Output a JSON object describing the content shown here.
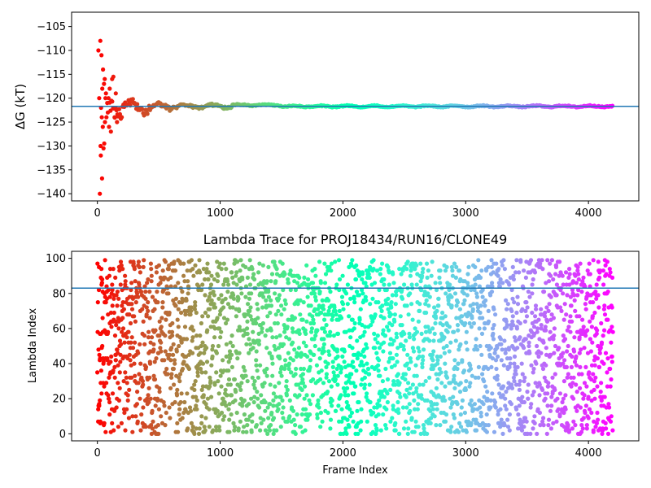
{
  "chart_data": [
    {
      "type": "scatter",
      "title": "",
      "xlabel": "",
      "ylabel": "ΔG (kT)",
      "xlim": [
        -210,
        4410
      ],
      "ylim": [
        -141.5,
        -102
      ],
      "xticks": [
        0,
        1000,
        2000,
        3000,
        4000
      ],
      "yticks": [
        -140,
        -135,
        -130,
        -125,
        -120,
        -115,
        -110,
        -105
      ],
      "hline": -121.7,
      "colormap": "rainbow",
      "n_frames": 4200,
      "description_of_series": "free energy estimate converging over frames",
      "early_points": [
        {
          "x": 8,
          "y": -110
        },
        {
          "x": 15,
          "y": -120
        },
        {
          "x": 20,
          "y": -140
        },
        {
          "x": 24,
          "y": -108
        },
        {
          "x": 26,
          "y": -130
        },
        {
          "x": 28,
          "y": -132
        },
        {
          "x": 30,
          "y": -122
        },
        {
          "x": 33,
          "y": -111
        },
        {
          "x": 36,
          "y": -124
        },
        {
          "x": 38,
          "y": -136.8
        },
        {
          "x": 40,
          "y": -118
        },
        {
          "x": 44,
          "y": -126
        },
        {
          "x": 46,
          "y": -114
        },
        {
          "x": 50,
          "y": -130.5
        },
        {
          "x": 54,
          "y": -117
        },
        {
          "x": 56,
          "y": -129.5
        },
        {
          "x": 60,
          "y": -116
        },
        {
          "x": 62,
          "y": -125
        },
        {
          "x": 66,
          "y": -120
        },
        {
          "x": 70,
          "y": -119
        },
        {
          "x": 74,
          "y": -124
        },
        {
          "x": 80,
          "y": -121
        },
        {
          "x": 85,
          "y": -123
        },
        {
          "x": 90,
          "y": -120
        },
        {
          "x": 95,
          "y": -126
        },
        {
          "x": 100,
          "y": -118
        },
        {
          "x": 110,
          "y": -127
        },
        {
          "x": 120,
          "y": -116
        },
        {
          "x": 130,
          "y": -115.5
        },
        {
          "x": 140,
          "y": -124
        },
        {
          "x": 150,
          "y": -119
        },
        {
          "x": 160,
          "y": -125
        }
      ]
    },
    {
      "type": "scatter",
      "title": "Lambda Trace for PROJ18434/RUN16/CLONE49",
      "xlabel": "Frame Index",
      "ylabel": "Lambda Index",
      "xlim": [
        -210,
        4410
      ],
      "ylim": [
        -4,
        104
      ],
      "xticks": [
        0,
        1000,
        2000,
        3000,
        4000
      ],
      "yticks": [
        0,
        20,
        40,
        60,
        80,
        100
      ],
      "hline": 83,
      "colormap": "rainbow",
      "n_frames": 4200,
      "lambda_range": [
        0,
        99
      ]
    }
  ]
}
